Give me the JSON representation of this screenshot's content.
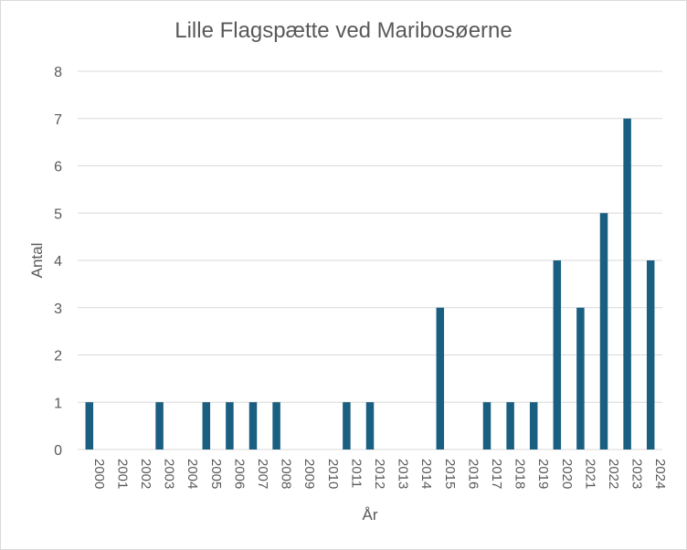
{
  "chart_data": {
    "type": "bar",
    "title": "Lille Flagspætte ved Maribosøerne",
    "xlabel": "År",
    "ylabel": "Antal",
    "ylim": [
      0,
      8
    ],
    "yticks": [
      0,
      1,
      2,
      3,
      4,
      5,
      6,
      7,
      8
    ],
    "grid": true,
    "legend": "none",
    "bar_color": "#1a5e80",
    "categories": [
      "2000",
      "2001",
      "2002",
      "2003",
      "2004",
      "2005",
      "2006",
      "2007",
      "2008",
      "2009",
      "2010",
      "2011",
      "2012",
      "2013",
      "2014",
      "2015",
      "2016",
      "2017",
      "2018",
      "2019",
      "2020",
      "2021",
      "2022",
      "2023",
      "2024"
    ],
    "values": [
      1,
      0,
      0,
      1,
      0,
      1,
      1,
      1,
      1,
      0,
      0,
      1,
      1,
      0,
      0,
      3,
      0,
      1,
      1,
      1,
      4,
      3,
      5,
      7,
      4
    ]
  }
}
